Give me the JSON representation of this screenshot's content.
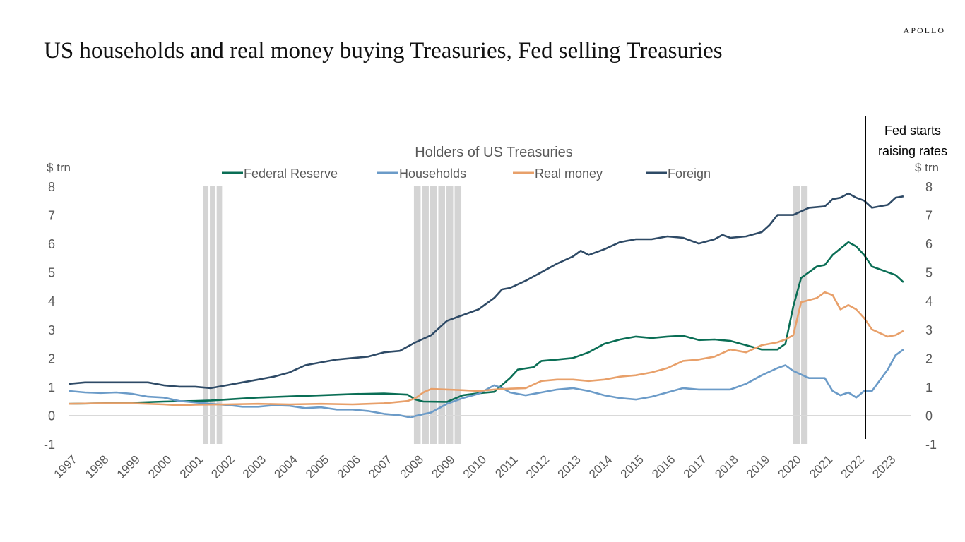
{
  "brand": "APOLLO",
  "headline": "US households and real money buying Treasuries, Fed selling Treasuries",
  "chart_data": {
    "type": "line",
    "title": "Holders of US Treasuries",
    "ylabel_left": "$ trn",
    "ylabel_right": "$ trn",
    "ylim": [
      -1,
      8
    ],
    "yticks": [
      -1,
      0,
      1,
      2,
      3,
      4,
      5,
      6,
      7,
      8
    ],
    "xlim": [
      1997,
      2023.75
    ],
    "year_labels": [
      "1997",
      "1998",
      "1999",
      "2000",
      "2001",
      "2002",
      "2003",
      "2004",
      "2005",
      "2006",
      "2007",
      "2008",
      "2009",
      "2010",
      "2011",
      "2012",
      "2013",
      "2014",
      "2015",
      "2016",
      "2017",
      "2018",
      "2019",
      "2020",
      "2021",
      "2022",
      "2023"
    ],
    "legend_position": "top-center",
    "grid": false,
    "recession_shading": [
      [
        2001.25,
        2001.9
      ],
      [
        2007.95,
        2009.5
      ],
      [
        2020.0,
        2020.5
      ]
    ],
    "event_line": {
      "x": 2022.3,
      "label_lines": [
        "Fed starts",
        "raising rates"
      ]
    },
    "series": [
      {
        "name": "Federal Reserve",
        "color": "#0a6e55",
        "points": [
          [
            1997,
            0.4
          ],
          [
            1998,
            0.42
          ],
          [
            1999,
            0.44
          ],
          [
            2000,
            0.48
          ],
          [
            2001,
            0.5
          ],
          [
            2001.5,
            0.52
          ],
          [
            2002,
            0.55
          ],
          [
            2003,
            0.62
          ],
          [
            2004,
            0.66
          ],
          [
            2005,
            0.7
          ],
          [
            2006,
            0.74
          ],
          [
            2007,
            0.76
          ],
          [
            2007.75,
            0.72
          ],
          [
            2008,
            0.55
          ],
          [
            2008.25,
            0.48
          ],
          [
            2009,
            0.47
          ],
          [
            2009.5,
            0.7
          ],
          [
            2010,
            0.77
          ],
          [
            2010.5,
            0.82
          ],
          [
            2011,
            1.3
          ],
          [
            2011.25,
            1.6
          ],
          [
            2011.75,
            1.68
          ],
          [
            2012,
            1.9
          ],
          [
            2012.5,
            1.95
          ],
          [
            2013,
            2.0
          ],
          [
            2013.5,
            2.2
          ],
          [
            2014,
            2.5
          ],
          [
            2014.5,
            2.65
          ],
          [
            2015,
            2.75
          ],
          [
            2015.5,
            2.7
          ],
          [
            2016,
            2.75
          ],
          [
            2016.5,
            2.78
          ],
          [
            2017,
            2.63
          ],
          [
            2017.5,
            2.65
          ],
          [
            2018,
            2.6
          ],
          [
            2018.5,
            2.45
          ],
          [
            2019,
            2.3
          ],
          [
            2019.5,
            2.3
          ],
          [
            2019.75,
            2.5
          ],
          [
            2020,
            3.8
          ],
          [
            2020.25,
            4.8
          ],
          [
            2020.75,
            5.2
          ],
          [
            2021,
            5.25
          ],
          [
            2021.25,
            5.6
          ],
          [
            2021.75,
            6.05
          ],
          [
            2022,
            5.9
          ],
          [
            2022.25,
            5.6
          ],
          [
            2022.5,
            5.2
          ],
          [
            2023,
            5.0
          ],
          [
            2023.25,
            4.9
          ],
          [
            2023.5,
            4.65
          ]
        ]
      },
      {
        "name": "Households",
        "color": "#6b9bc8",
        "points": [
          [
            1997,
            0.85
          ],
          [
            1997.5,
            0.8
          ],
          [
            1998,
            0.78
          ],
          [
            1998.5,
            0.8
          ],
          [
            1999,
            0.75
          ],
          [
            1999.5,
            0.65
          ],
          [
            2000,
            0.62
          ],
          [
            2000.5,
            0.5
          ],
          [
            2001,
            0.45
          ],
          [
            2001.5,
            0.4
          ],
          [
            2002,
            0.36
          ],
          [
            2002.5,
            0.3
          ],
          [
            2003,
            0.3
          ],
          [
            2003.5,
            0.35
          ],
          [
            2004,
            0.33
          ],
          [
            2004.5,
            0.25
          ],
          [
            2005,
            0.28
          ],
          [
            2005.5,
            0.2
          ],
          [
            2006,
            0.2
          ],
          [
            2006.5,
            0.15
          ],
          [
            2007,
            0.05
          ],
          [
            2007.5,
            0.0
          ],
          [
            2007.85,
            -0.08
          ],
          [
            2008,
            -0.02
          ],
          [
            2008.5,
            0.1
          ],
          [
            2009,
            0.4
          ],
          [
            2009.5,
            0.6
          ],
          [
            2010,
            0.75
          ],
          [
            2010.5,
            1.05
          ],
          [
            2010.75,
            0.95
          ],
          [
            2011,
            0.8
          ],
          [
            2011.5,
            0.7
          ],
          [
            2012,
            0.8
          ],
          [
            2012.5,
            0.9
          ],
          [
            2013,
            0.95
          ],
          [
            2013.5,
            0.85
          ],
          [
            2014,
            0.7
          ],
          [
            2014.5,
            0.6
          ],
          [
            2015,
            0.55
          ],
          [
            2015.5,
            0.65
          ],
          [
            2016,
            0.8
          ],
          [
            2016.5,
            0.95
          ],
          [
            2017,
            0.9
          ],
          [
            2017.5,
            0.9
          ],
          [
            2018,
            0.9
          ],
          [
            2018.5,
            1.1
          ],
          [
            2019,
            1.4
          ],
          [
            2019.5,
            1.65
          ],
          [
            2019.75,
            1.75
          ],
          [
            2020,
            1.55
          ],
          [
            2020.5,
            1.3
          ],
          [
            2021,
            1.3
          ],
          [
            2021.25,
            0.85
          ],
          [
            2021.5,
            0.7
          ],
          [
            2021.75,
            0.8
          ],
          [
            2022,
            0.62
          ],
          [
            2022.25,
            0.85
          ],
          [
            2022.5,
            0.85
          ],
          [
            2023,
            1.6
          ],
          [
            2023.25,
            2.1
          ],
          [
            2023.5,
            2.3
          ]
        ]
      },
      {
        "name": "Real money",
        "color": "#e8a06a",
        "points": [
          [
            1997,
            0.4
          ],
          [
            1998,
            0.42
          ],
          [
            1999,
            0.42
          ],
          [
            2000,
            0.38
          ],
          [
            2000.5,
            0.35
          ],
          [
            2001,
            0.37
          ],
          [
            2002,
            0.38
          ],
          [
            2003,
            0.4
          ],
          [
            2004,
            0.38
          ],
          [
            2005,
            0.4
          ],
          [
            2006,
            0.38
          ],
          [
            2007,
            0.42
          ],
          [
            2007.75,
            0.5
          ],
          [
            2008,
            0.6
          ],
          [
            2008.25,
            0.8
          ],
          [
            2008.5,
            0.92
          ],
          [
            2009,
            0.9
          ],
          [
            2009.5,
            0.88
          ],
          [
            2010,
            0.85
          ],
          [
            2010.5,
            0.9
          ],
          [
            2011,
            0.93
          ],
          [
            2011.5,
            0.95
          ],
          [
            2012,
            1.2
          ],
          [
            2012.5,
            1.25
          ],
          [
            2013,
            1.25
          ],
          [
            2013.5,
            1.2
          ],
          [
            2014,
            1.25
          ],
          [
            2014.5,
            1.35
          ],
          [
            2015,
            1.4
          ],
          [
            2015.5,
            1.5
          ],
          [
            2016,
            1.65
          ],
          [
            2016.5,
            1.9
          ],
          [
            2017,
            1.95
          ],
          [
            2017.5,
            2.05
          ],
          [
            2018,
            2.3
          ],
          [
            2018.5,
            2.2
          ],
          [
            2019,
            2.45
          ],
          [
            2019.5,
            2.55
          ],
          [
            2019.75,
            2.65
          ],
          [
            2020,
            2.8
          ],
          [
            2020.25,
            3.95
          ],
          [
            2020.75,
            4.1
          ],
          [
            2021,
            4.3
          ],
          [
            2021.25,
            4.2
          ],
          [
            2021.5,
            3.7
          ],
          [
            2021.75,
            3.85
          ],
          [
            2022,
            3.7
          ],
          [
            2022.25,
            3.4
          ],
          [
            2022.5,
            3.0
          ],
          [
            2023,
            2.75
          ],
          [
            2023.25,
            2.8
          ],
          [
            2023.5,
            2.95
          ]
        ]
      },
      {
        "name": "Foreign",
        "color": "#2e4a66",
        "points": [
          [
            1997,
            1.1
          ],
          [
            1997.5,
            1.15
          ],
          [
            1998,
            1.15
          ],
          [
            1998.5,
            1.15
          ],
          [
            1999,
            1.15
          ],
          [
            1999.5,
            1.15
          ],
          [
            2000,
            1.05
          ],
          [
            2000.5,
            1.0
          ],
          [
            2001,
            1.0
          ],
          [
            2001.5,
            0.95
          ],
          [
            2002,
            1.05
          ],
          [
            2002.5,
            1.15
          ],
          [
            2003,
            1.25
          ],
          [
            2003.5,
            1.35
          ],
          [
            2004,
            1.5
          ],
          [
            2004.5,
            1.75
          ],
          [
            2005,
            1.85
          ],
          [
            2005.5,
            1.95
          ],
          [
            2006,
            2.0
          ],
          [
            2006.5,
            2.05
          ],
          [
            2007,
            2.2
          ],
          [
            2007.5,
            2.25
          ],
          [
            2008,
            2.55
          ],
          [
            2008.5,
            2.8
          ],
          [
            2009,
            3.3
          ],
          [
            2009.5,
            3.5
          ],
          [
            2010,
            3.7
          ],
          [
            2010.5,
            4.1
          ],
          [
            2010.75,
            4.4
          ],
          [
            2011,
            4.45
          ],
          [
            2011.5,
            4.7
          ],
          [
            2012,
            5.0
          ],
          [
            2012.5,
            5.3
          ],
          [
            2013,
            5.55
          ],
          [
            2013.25,
            5.75
          ],
          [
            2013.5,
            5.6
          ],
          [
            2014,
            5.8
          ],
          [
            2014.5,
            6.05
          ],
          [
            2015,
            6.15
          ],
          [
            2015.5,
            6.15
          ],
          [
            2016,
            6.25
          ],
          [
            2016.5,
            6.2
          ],
          [
            2017,
            6.0
          ],
          [
            2017.5,
            6.15
          ],
          [
            2017.75,
            6.3
          ],
          [
            2018,
            6.2
          ],
          [
            2018.5,
            6.25
          ],
          [
            2019,
            6.4
          ],
          [
            2019.25,
            6.65
          ],
          [
            2019.5,
            7.0
          ],
          [
            2020,
            7.0
          ],
          [
            2020.5,
            7.25
          ],
          [
            2021,
            7.3
          ],
          [
            2021.25,
            7.55
          ],
          [
            2021.5,
            7.6
          ],
          [
            2021.75,
            7.75
          ],
          [
            2022,
            7.6
          ],
          [
            2022.25,
            7.5
          ],
          [
            2022.5,
            7.25
          ],
          [
            2023,
            7.35
          ],
          [
            2023.25,
            7.6
          ],
          [
            2023.5,
            7.65
          ]
        ]
      }
    ]
  }
}
